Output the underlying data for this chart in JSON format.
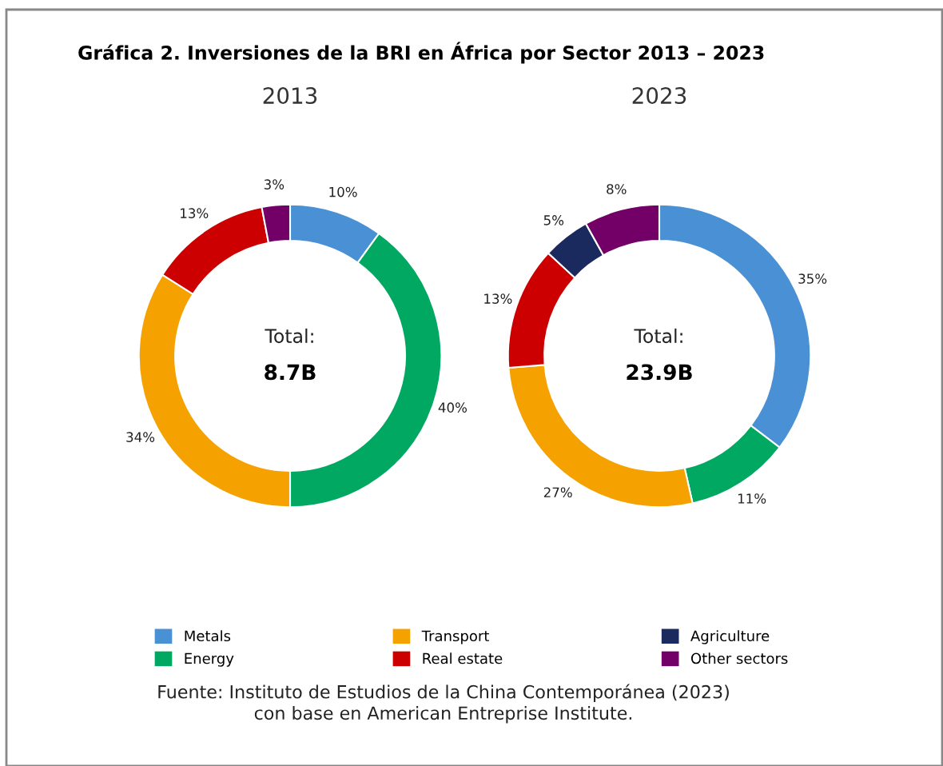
{
  "chart_data": [
    {
      "type": "donut",
      "title": "2013",
      "annotations": [
        "Gráfica 2. Inversiones de la BRI en África por Sector 2013 – 2023",
        "Total:",
        "8.7B"
      ],
      "categories": [
        null,
        null,
        null,
        null,
        null
      ],
      "values": [
        10,
        40,
        34,
        13,
        3
      ],
      "value_labels": [
        "10%",
        "40%",
        "34%",
        "13%",
        "3%"
      ],
      "colors": [
        "#4a90d4",
        "#00a862",
        "#f5a200",
        "#cc0000",
        "#730066"
      ]
    },
    {
      "type": "donut",
      "title": "2023",
      "annotations": [
        "Total:",
        "23.9B",
        "Fuente: Instituto de Estudios de la China Contemporánea (2023)\ncon base en American Entreprise Institute."
      ],
      "categories": [
        "Metals",
        "Energy",
        "Transport",
        "Real estate",
        "Agriculture",
        "Other sectors"
      ],
      "values": [
        35,
        11,
        27,
        13,
        5,
        8
      ],
      "value_labels": [
        "35%",
        "11%",
        "27%",
        "13%",
        "5%",
        "8%"
      ],
      "colors": [
        "#4a90d4",
        "#00a862",
        "#f5a200",
        "#cc0000",
        "#1a2a5e",
        "#730066"
      ],
      "legend": "bottom"
    }
  ]
}
